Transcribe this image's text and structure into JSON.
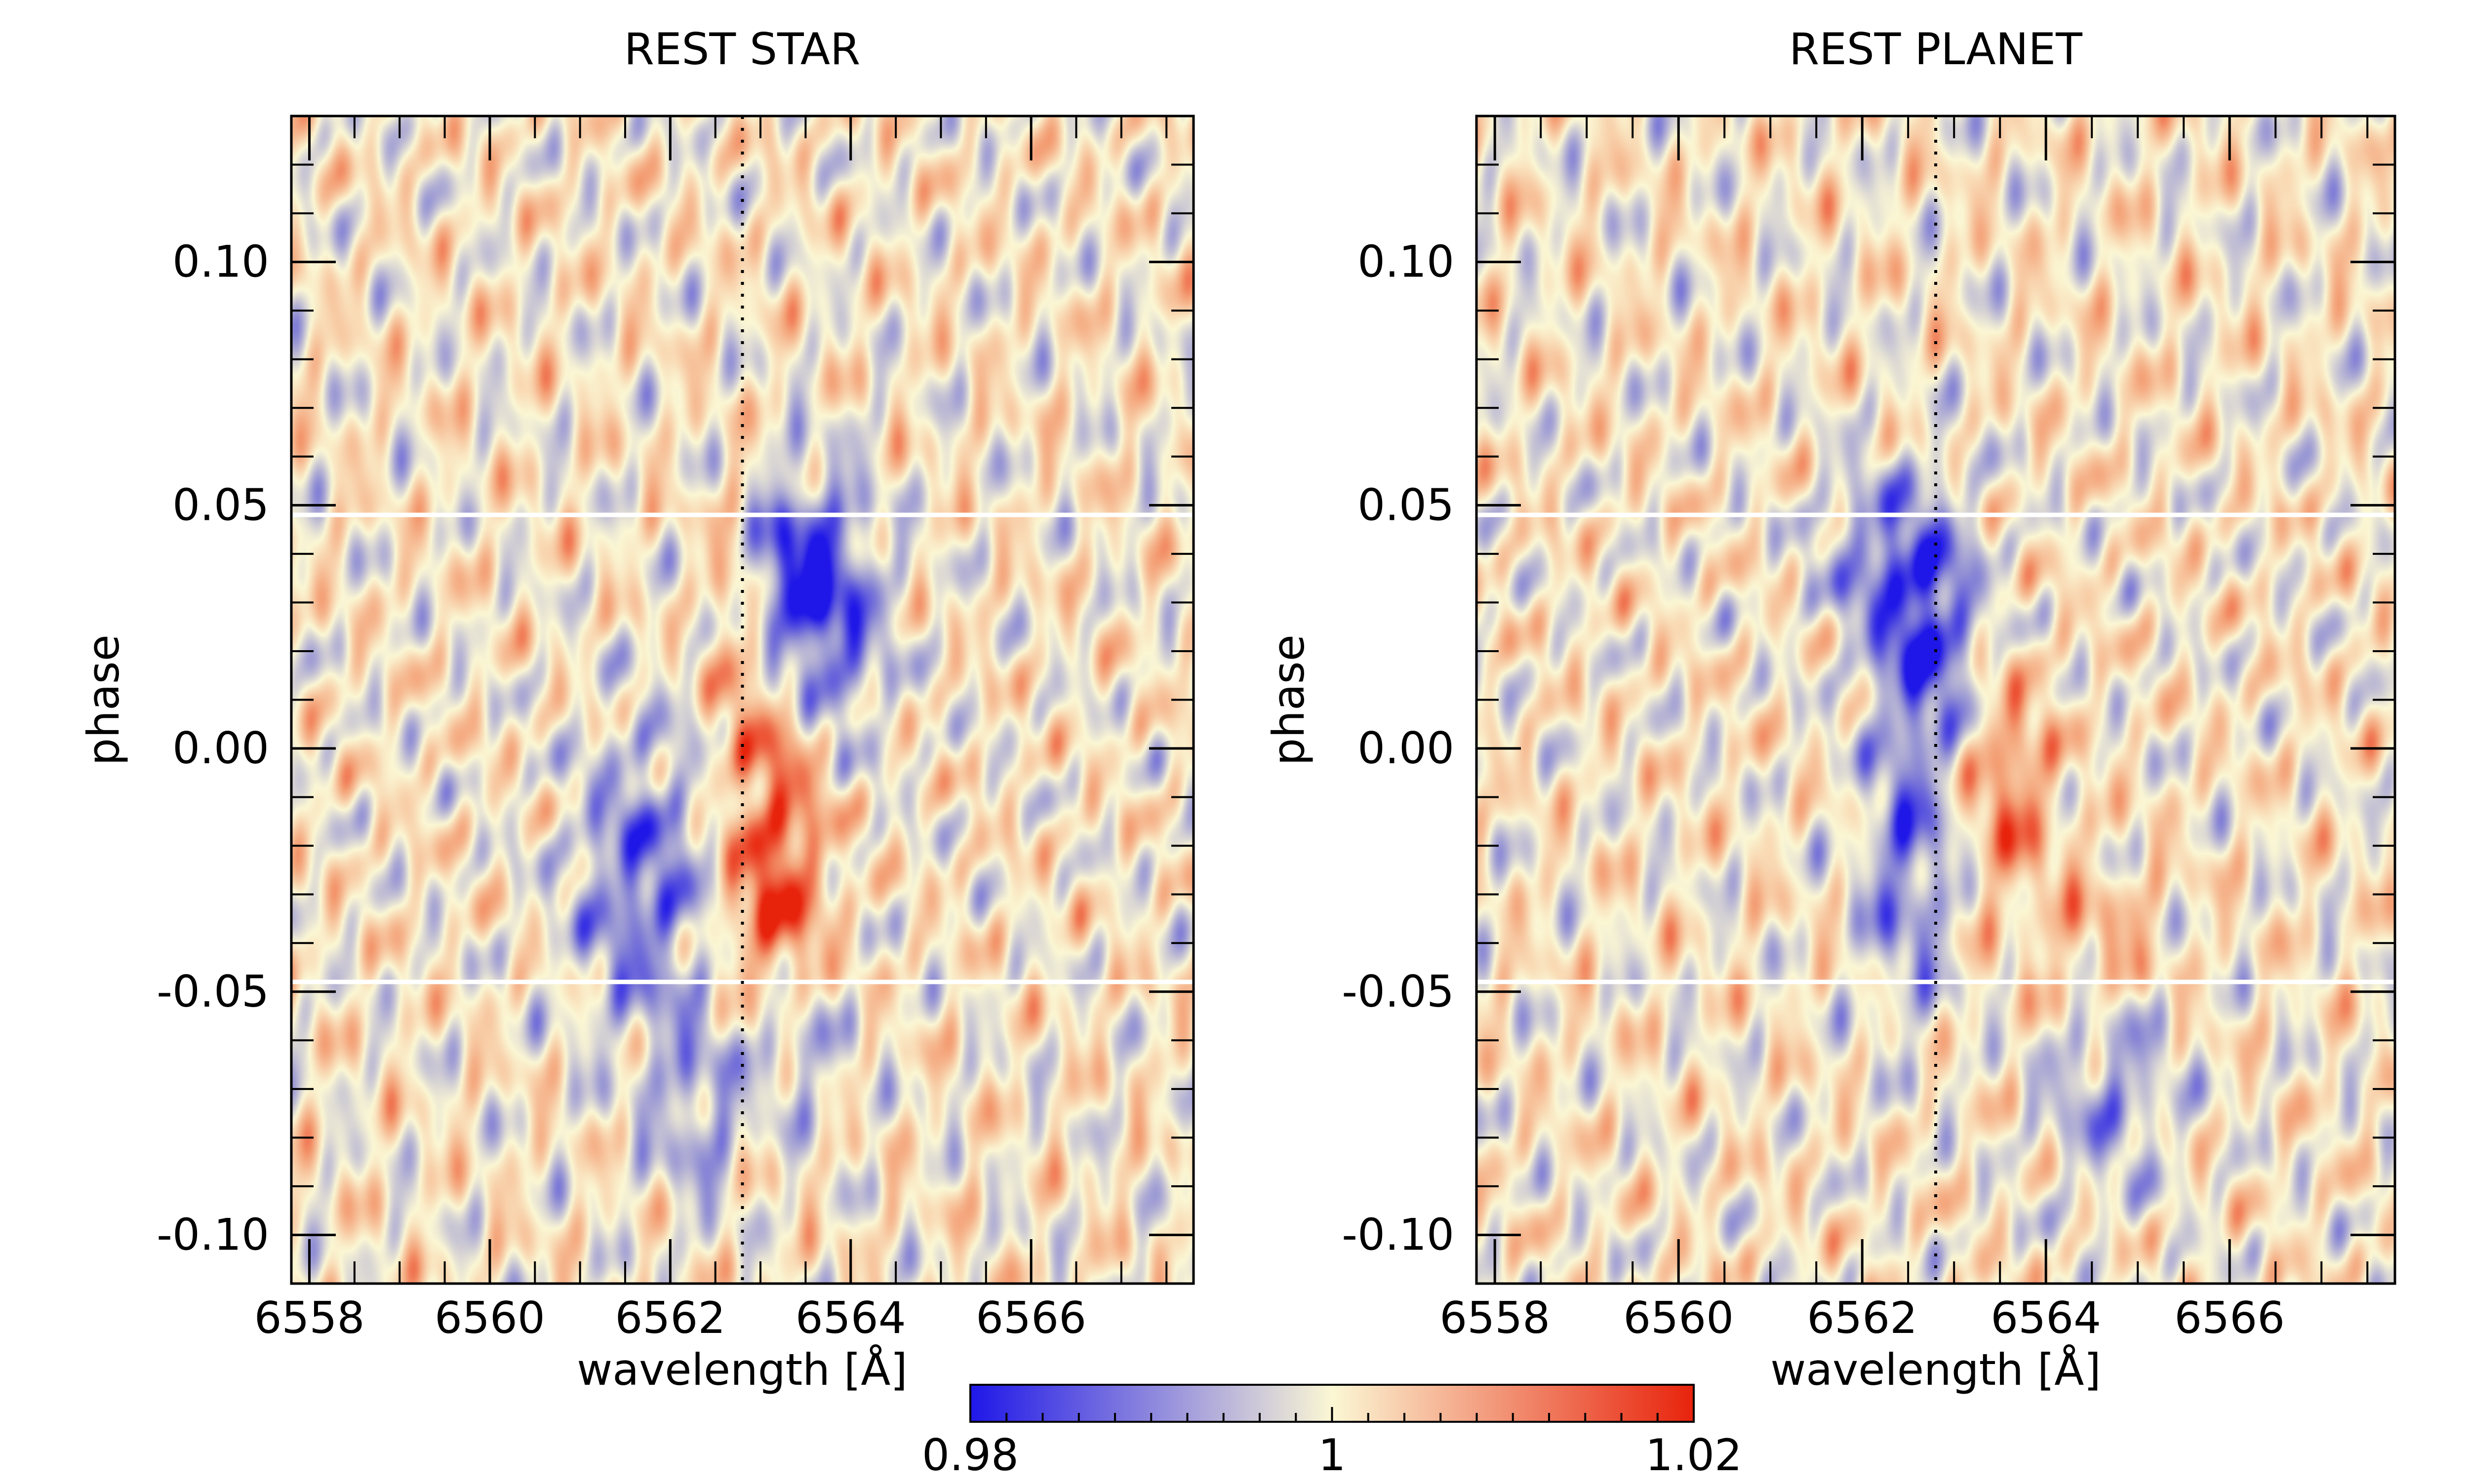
{
  "chart_data": [
    {
      "type": "heatmap",
      "title": "REST STAR",
      "xlabel": "wavelength [Å]",
      "ylabel": "phase",
      "xlim": [
        6557.8,
        6567.8
      ],
      "ylim": [
        -0.11,
        0.13
      ],
      "xticks": [
        6558,
        6560,
        6562,
        6564,
        6566
      ],
      "xtick_labels": [
        "6558",
        "6560",
        "6562",
        "6564",
        "6566"
      ],
      "yticks": [
        0.1,
        0.05,
        0.0,
        -0.05,
        -0.1
      ],
      "ytick_labels": [
        "0.10",
        "0.05",
        "0.00",
        "-0.05",
        "-0.10"
      ],
      "reference_line_x": 6562.8,
      "transit_boundaries_phase": [
        0.048,
        -0.048
      ],
      "features": [
        {
          "kind": "absorption",
          "x": 6563.7,
          "y": 0.027,
          "dx": 0.45,
          "dy": 0.018,
          "amp": -0.018
        },
        {
          "kind": "absorption",
          "x": 6563.3,
          "y": 0.038,
          "dx": 0.35,
          "dy": 0.012,
          "amp": -0.01
        },
        {
          "kind": "absorption",
          "x": 6561.7,
          "y": -0.028,
          "dx": 0.55,
          "dy": 0.022,
          "amp": -0.014
        },
        {
          "kind": "absorption",
          "x": 6562.3,
          "y": -0.075,
          "dx": 0.35,
          "dy": 0.014,
          "amp": -0.009
        },
        {
          "kind": "absorption",
          "x": 6563.4,
          "y": -0.062,
          "dx": 0.4,
          "dy": 0.01,
          "amp": -0.007
        },
        {
          "kind": "emission",
          "x": 6563.2,
          "y": -0.008,
          "dx": 0.4,
          "dy": 0.02,
          "amp": 0.014
        },
        {
          "kind": "emission",
          "x": 6563.1,
          "y": -0.035,
          "dx": 0.4,
          "dy": 0.012,
          "amp": 0.01
        },
        {
          "kind": "emission",
          "x": 6562.7,
          "y": 0.025,
          "dx": 0.2,
          "dy": 0.02,
          "amp": 0.006
        }
      ]
    },
    {
      "type": "heatmap",
      "title": "REST PLANET",
      "xlabel": "wavelength [Å]",
      "ylabel": "phase",
      "xlim": [
        6557.8,
        6567.8
      ],
      "ylim": [
        -0.11,
        0.13
      ],
      "xticks": [
        6558,
        6560,
        6562,
        6564,
        6566
      ],
      "xtick_labels": [
        "6558",
        "6560",
        "6562",
        "6564",
        "6566"
      ],
      "yticks": [
        0.1,
        0.05,
        0.0,
        -0.05,
        -0.1
      ],
      "ytick_labels": [
        "0.10",
        "0.05",
        "0.00",
        "-0.05",
        "-0.10"
      ],
      "reference_line_x": 6562.8,
      "transit_boundaries_phase": [
        0.048,
        -0.048
      ],
      "features": [
        {
          "kind": "absorption",
          "x": 6562.7,
          "y": 0.025,
          "dx": 0.4,
          "dy": 0.018,
          "amp": -0.018
        },
        {
          "kind": "absorption",
          "x": 6562.1,
          "y": 0.04,
          "dx": 0.45,
          "dy": 0.012,
          "amp": -0.009
        },
        {
          "kind": "absorption",
          "x": 6562.5,
          "y": -0.025,
          "dx": 0.35,
          "dy": 0.02,
          "amp": -0.013
        },
        {
          "kind": "absorption",
          "x": 6564.7,
          "y": -0.068,
          "dx": 0.5,
          "dy": 0.016,
          "amp": -0.01
        },
        {
          "kind": "emission",
          "x": 6563.6,
          "y": -0.008,
          "dx": 0.35,
          "dy": 0.016,
          "amp": 0.012
        },
        {
          "kind": "emission",
          "x": 6564.6,
          "y": -0.042,
          "dx": 0.5,
          "dy": 0.012,
          "amp": 0.008
        }
      ]
    }
  ],
  "colorbar": {
    "min": 0.98,
    "max": 1.02,
    "tick_values": [
      0.98,
      1.0,
      1.02
    ],
    "tick_labels": [
      "0.98",
      "1",
      "1.02"
    ],
    "colors": [
      "#1f17e8",
      "#fbf7d4",
      "#e8230c"
    ]
  }
}
